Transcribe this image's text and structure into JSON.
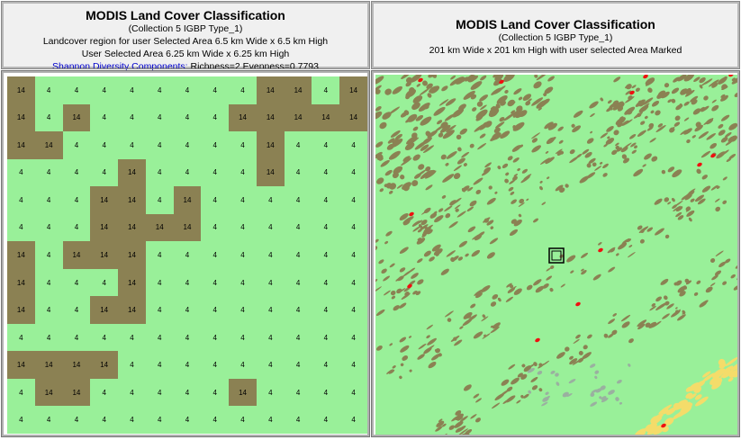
{
  "left_header": {
    "title": "MODIS Land Cover Classification",
    "subtitle": "(Collection 5 IGBP Type_1)",
    "line1": "Landcover region for user Selected Area 6.5 km Wide x 6.5 km High",
    "line2": "User Selected Area 6.25 km Wide x 6.25 km High",
    "diversity_link": "Shannon Diversity Components:",
    "diversity_values": " Richness=2 Evenness=0.7793"
  },
  "right_header": {
    "title": "MODIS Land Cover Classification",
    "subtitle": "(Collection 5 IGBP Type_1)",
    "line1": "201 km Wide x 201 km High with user selected Area Marked"
  },
  "colors": {
    "class_4": "#99f099",
    "class_14": "#8b8153",
    "map_red": "#ee1111",
    "map_yellow": "#f4dc6a",
    "map_grey": "#9ab0a0"
  },
  "landcover_grid": [
    [
      "14",
      "4",
      "4",
      "4",
      "4",
      "4",
      "4",
      "4",
      "4",
      "14",
      "14",
      "4",
      "14"
    ],
    [
      "14",
      "4",
      "14",
      "4",
      "4",
      "4",
      "4",
      "4",
      "14",
      "14",
      "14",
      "14",
      "14"
    ],
    [
      "14",
      "14",
      "4",
      "4",
      "4",
      "4",
      "4",
      "4",
      "4",
      "14",
      "4",
      "4",
      "4"
    ],
    [
      "4",
      "4",
      "4",
      "4",
      "14",
      "4",
      "4",
      "4",
      "4",
      "14",
      "4",
      "4",
      "4"
    ],
    [
      "4",
      "4",
      "4",
      "14",
      "14",
      "4",
      "14",
      "4",
      "4",
      "4",
      "4",
      "4",
      "4"
    ],
    [
      "4",
      "4",
      "4",
      "14",
      "14",
      "14",
      "14",
      "4",
      "4",
      "4",
      "4",
      "4",
      "4"
    ],
    [
      "14",
      "4",
      "14",
      "14",
      "14",
      "4",
      "4",
      "4",
      "4",
      "4",
      "4",
      "4",
      "4"
    ],
    [
      "14",
      "4",
      "4",
      "4",
      "14",
      "4",
      "4",
      "4",
      "4",
      "4",
      "4",
      "4",
      "4"
    ],
    [
      "14",
      "4",
      "4",
      "14",
      "14",
      "4",
      "4",
      "4",
      "4",
      "4",
      "4",
      "4",
      "4"
    ],
    [
      "4",
      "4",
      "4",
      "4",
      "4",
      "4",
      "4",
      "4",
      "4",
      "4",
      "4",
      "4",
      "4"
    ],
    [
      "14",
      "14",
      "14",
      "14",
      "4",
      "4",
      "4",
      "4",
      "4",
      "4",
      "4",
      "4",
      "4"
    ],
    [
      "4",
      "14",
      "14",
      "4",
      "4",
      "4",
      "4",
      "4",
      "14",
      "4",
      "4",
      "4",
      "4"
    ],
    [
      "4",
      "4",
      "4",
      "4",
      "4",
      "4",
      "4",
      "4",
      "4",
      "4",
      "4",
      "4",
      "4"
    ]
  ],
  "overview_map": {
    "selected_area_marker": "selected-area-box"
  }
}
